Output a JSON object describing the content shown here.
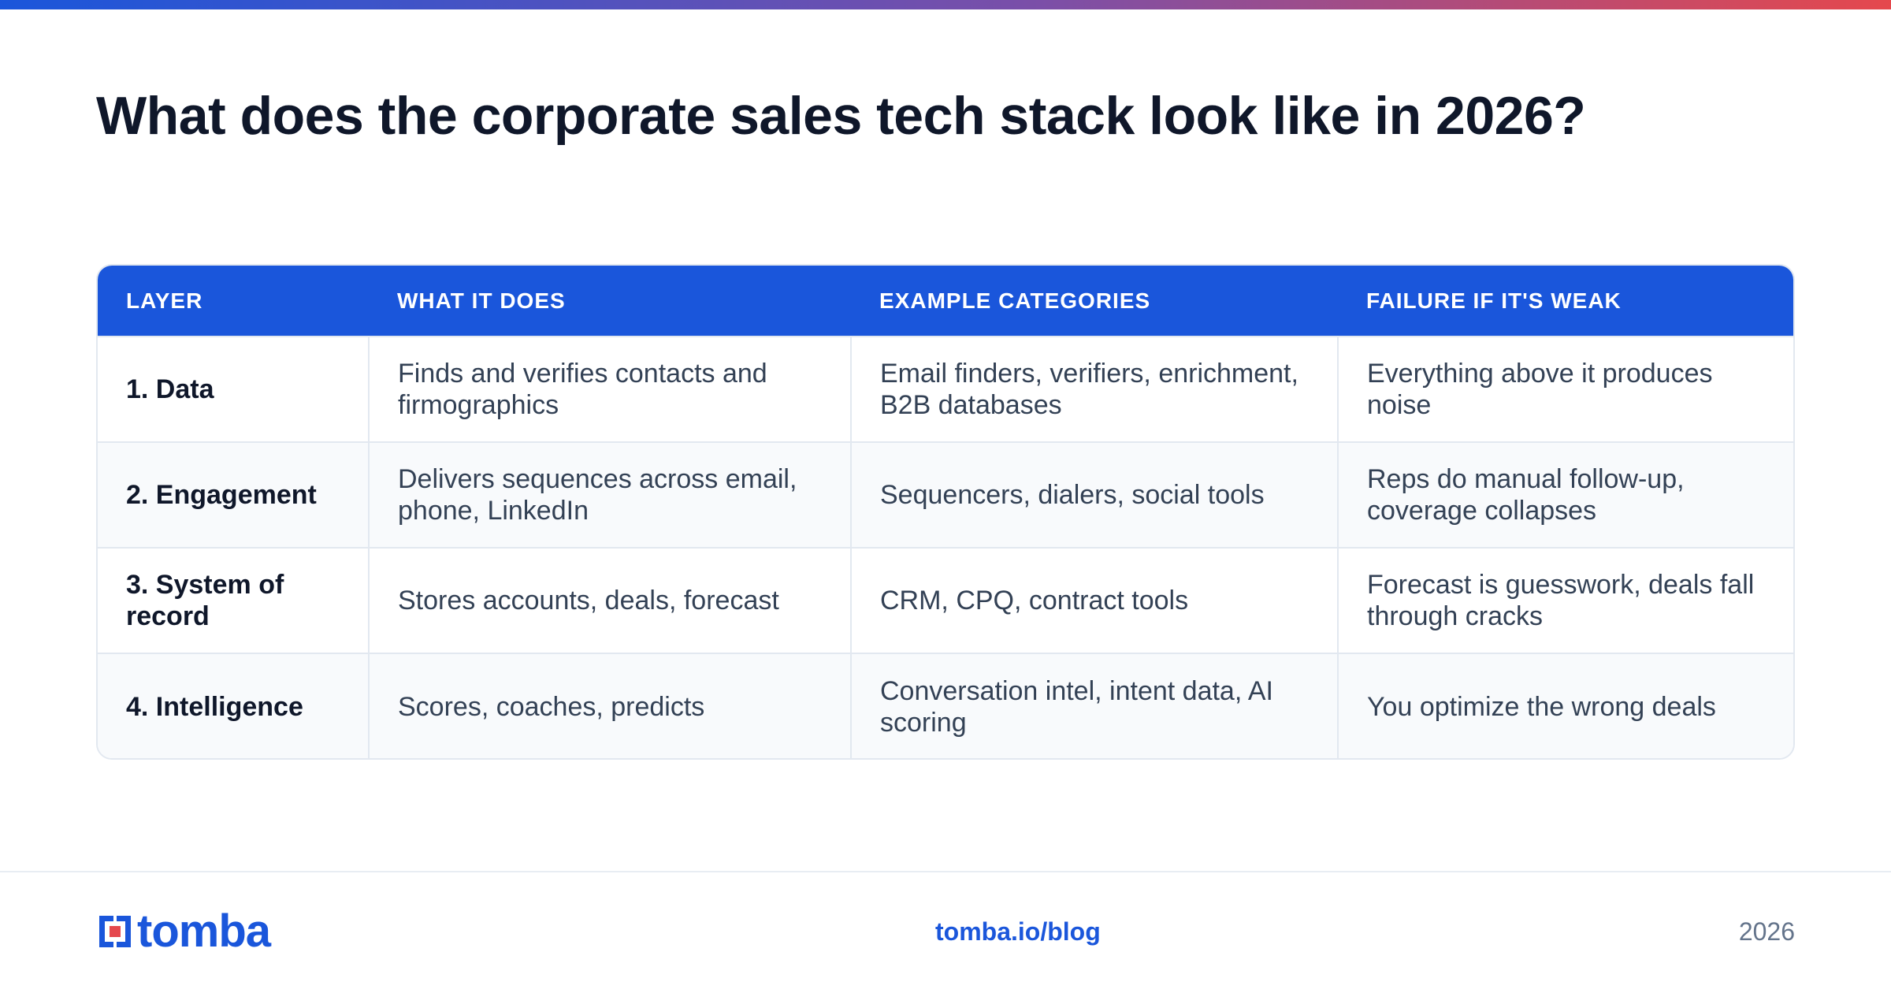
{
  "title": "What does the corporate sales tech stack look like in 2026?",
  "colors": {
    "accent_blue": "#1a56db",
    "gradient_start": "#1a56db",
    "gradient_end": "#e5484d",
    "logo_red": "#e5484d"
  },
  "table": {
    "headers": [
      "LAYER",
      "WHAT IT DOES",
      "EXAMPLE CATEGORIES",
      "FAILURE IF IT'S WEAK"
    ],
    "rows": [
      {
        "layer": "1. Data",
        "does": "Finds and verifies contacts and firmographics",
        "examples": "Email finders, verifiers, enrichment, B2B databases",
        "failure": "Everything above it produces noise"
      },
      {
        "layer": "2. Engagement",
        "does": "Delivers sequences across email, phone, LinkedIn",
        "examples": "Sequencers, dialers, social tools",
        "failure": "Reps do manual follow-up, coverage collapses"
      },
      {
        "layer": "3. System of record",
        "does": "Stores accounts, deals, forecast",
        "examples": "CRM, CPQ, contract tools",
        "failure": "Forecast is guesswork, deals fall through cracks"
      },
      {
        "layer": "4. Intelligence",
        "does": "Scores, coaches, predicts",
        "examples": "Conversation intel, intent data, AI scoring",
        "failure": "You optimize the wrong deals"
      }
    ]
  },
  "footer": {
    "logo_text": "tomba",
    "logo_icon": "tomba-logo-icon",
    "link": "tomba.io/blog",
    "year": "2026"
  }
}
